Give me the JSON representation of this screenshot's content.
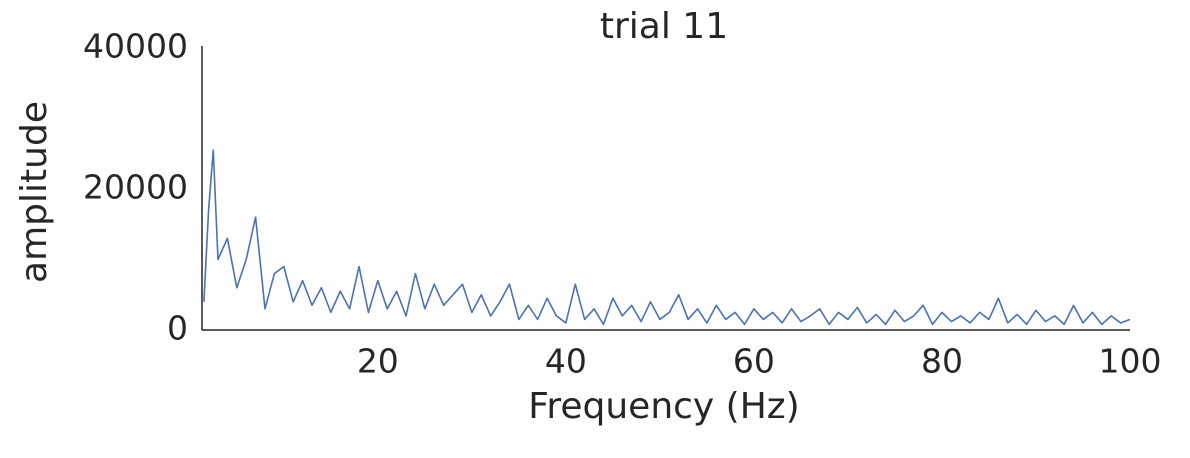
{
  "chart_data": {
    "type": "line",
    "title": "trial 11",
    "x_label": "Frequency (Hz)",
    "y_label": "amplitude",
    "x": [
      1.5,
      2,
      2.5,
      3,
      4,
      5,
      6,
      7,
      8,
      9,
      10,
      11,
      12,
      13,
      14,
      15,
      16,
      17,
      18,
      19,
      20,
      21,
      22,
      23,
      24,
      25,
      26,
      27,
      28,
      29,
      30,
      31,
      32,
      33,
      34,
      35,
      36,
      37,
      38,
      39,
      40,
      41,
      42,
      43,
      44,
      45,
      46,
      47,
      48,
      49,
      50,
      51,
      52,
      53,
      54,
      55,
      56,
      57,
      58,
      59,
      60,
      61,
      62,
      63,
      64,
      65,
      66,
      67,
      68,
      69,
      70,
      71,
      72,
      73,
      74,
      75,
      76,
      77,
      78,
      79,
      80,
      81,
      82,
      83,
      84,
      85,
      86,
      87,
      88,
      89,
      90,
      91,
      92,
      93,
      94,
      95,
      96,
      97,
      98,
      99,
      100
    ],
    "series": [
      {
        "name": "amplitude",
        "color": "#4c72b0",
        "values": [
          4000,
          17000,
          25500,
          10000,
          13000,
          6000,
          10000,
          16000,
          3000,
          8000,
          9000,
          4000,
          7000,
          3500,
          6000,
          2500,
          5500,
          3000,
          9000,
          2500,
          7000,
          3000,
          5500,
          2000,
          8000,
          3000,
          6500,
          3500,
          5000,
          6500,
          2500,
          5000,
          2000,
          4000,
          6500,
          1500,
          3500,
          1500,
          4500,
          2000,
          1000,
          6500,
          1500,
          3000,
          800,
          4500,
          2000,
          3500,
          1200,
          4000,
          1500,
          2500,
          5000,
          1500,
          3000,
          1000,
          3500,
          1500,
          2500,
          800,
          3000,
          1500,
          2500,
          1000,
          3000,
          1200,
          2000,
          3000,
          800,
          2500,
          1500,
          3200,
          1000,
          2200,
          800,
          2800,
          1200,
          2000,
          3500,
          800,
          2500,
          1200,
          2000,
          1000,
          2500,
          1500,
          4500,
          1000,
          2200,
          800,
          2800,
          1200,
          2000,
          800,
          3500,
          1000,
          2500,
          800,
          2000,
          1000,
          1500
        ]
      }
    ],
    "xlim": [
      1.3,
      100
    ],
    "ylim": [
      0,
      40000
    ],
    "xticks": [
      20,
      40,
      60,
      80,
      100
    ],
    "yticks": [
      0,
      20000,
      40000
    ]
  }
}
